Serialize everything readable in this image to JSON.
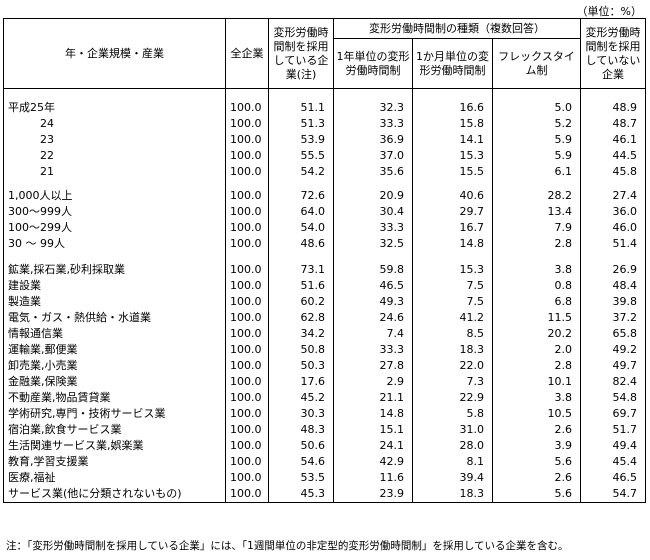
{
  "unit": "（単位：%）",
  "header": {
    "label": "年・企業規模・産業",
    "all": "全企業",
    "adopted": "変形労働時間制を採用している企業(注)",
    "group": "変形労働時間制の種類（複数回答）",
    "types": [
      "1年単位の変形労働時間制",
      "1か月単位の変形労働時間制",
      "フレックスタイム制"
    ],
    "not_adopted": "変形労働時間制を採用していない企業"
  },
  "groups": [
    {
      "rows": [
        {
          "label": "平成25年",
          "values": [
            "100.0",
            "51.1",
            "32.3",
            "16.6",
            "5.0",
            "48.9"
          ]
        },
        {
          "label": "24",
          "values": [
            "100.0",
            "51.3",
            "33.3",
            "15.8",
            "5.2",
            "48.7"
          ]
        },
        {
          "label": "23",
          "values": [
            "100.0",
            "53.9",
            "36.9",
            "14.1",
            "5.9",
            "46.1"
          ]
        },
        {
          "label": "22",
          "values": [
            "100.0",
            "55.5",
            "37.0",
            "15.3",
            "5.9",
            "44.5"
          ]
        },
        {
          "label": "21",
          "values": [
            "100.0",
            "54.2",
            "35.6",
            "15.5",
            "6.1",
            "45.8"
          ]
        }
      ]
    },
    {
      "rows": [
        {
          "label": "1,000人以上",
          "values": [
            "100.0",
            "72.6",
            "20.9",
            "40.6",
            "28.2",
            "27.4"
          ]
        },
        {
          "label": "300～999人",
          "values": [
            "100.0",
            "64.0",
            "30.4",
            "29.7",
            "13.4",
            "36.0"
          ]
        },
        {
          "label": "100～299人",
          "values": [
            "100.0",
            "54.0",
            "33.3",
            "16.7",
            "7.9",
            "46.0"
          ]
        },
        {
          "label": "30 ～ 99人",
          "values": [
            "100.0",
            "48.6",
            "32.5",
            "14.8",
            "2.8",
            "51.4"
          ]
        }
      ]
    },
    {
      "rows": [
        {
          "label": "鉱業,採石業,砂利採取業",
          "values": [
            "100.0",
            "73.1",
            "59.8",
            "15.3",
            "3.8",
            "26.9"
          ]
        },
        {
          "label": "建設業",
          "values": [
            "100.0",
            "51.6",
            "46.5",
            "7.5",
            "0.8",
            "48.4"
          ]
        },
        {
          "label": "製造業",
          "values": [
            "100.0",
            "60.2",
            "49.3",
            "7.5",
            "6.8",
            "39.8"
          ]
        },
        {
          "label": "電気・ガス・熱供給・水道業",
          "values": [
            "100.0",
            "62.8",
            "24.6",
            "41.2",
            "11.5",
            "37.2"
          ]
        },
        {
          "label": "情報通信業",
          "values": [
            "100.0",
            "34.2",
            "7.4",
            "8.5",
            "20.2",
            "65.8"
          ]
        },
        {
          "label": "運輸業,郵便業",
          "values": [
            "100.0",
            "50.8",
            "33.3",
            "18.3",
            "2.0",
            "49.2"
          ]
        },
        {
          "label": "卸売業,小売業",
          "values": [
            "100.0",
            "50.3",
            "27.8",
            "22.0",
            "2.8",
            "49.7"
          ]
        },
        {
          "label": "金融業,保険業",
          "values": [
            "100.0",
            "17.6",
            "2.9",
            "7.3",
            "10.1",
            "82.4"
          ]
        },
        {
          "label": "不動産業,物品賃貸業",
          "values": [
            "100.0",
            "45.2",
            "21.1",
            "22.9",
            "3.8",
            "54.8"
          ]
        },
        {
          "label": "学術研究,専門・技術サービス業",
          "values": [
            "100.0",
            "30.3",
            "14.8",
            "5.8",
            "10.5",
            "69.7"
          ]
        },
        {
          "label": "宿泊業,飲食サービス業",
          "values": [
            "100.0",
            "48.3",
            "15.1",
            "31.0",
            "2.6",
            "51.7"
          ]
        },
        {
          "label": "生活関連サービス業,娯楽業",
          "values": [
            "100.0",
            "50.6",
            "24.1",
            "28.0",
            "3.9",
            "49.4"
          ]
        },
        {
          "label": "教育,学習支援業",
          "values": [
            "100.0",
            "54.6",
            "42.9",
            "8.1",
            "5.6",
            "45.4"
          ]
        },
        {
          "label": "医療,福祉",
          "values": [
            "100.0",
            "53.5",
            "11.6",
            "39.4",
            "2.6",
            "46.5"
          ]
        },
        {
          "label": "サービス業(他に分類されないもの)",
          "values": [
            "100.0",
            "45.3",
            "23.9",
            "18.3",
            "5.6",
            "54.7"
          ]
        }
      ]
    }
  ],
  "note": "注：「変形労働時間制を採用している企業」には、「1週間単位の非定型的変形労働時間制」を採用している企業を含む。"
}
